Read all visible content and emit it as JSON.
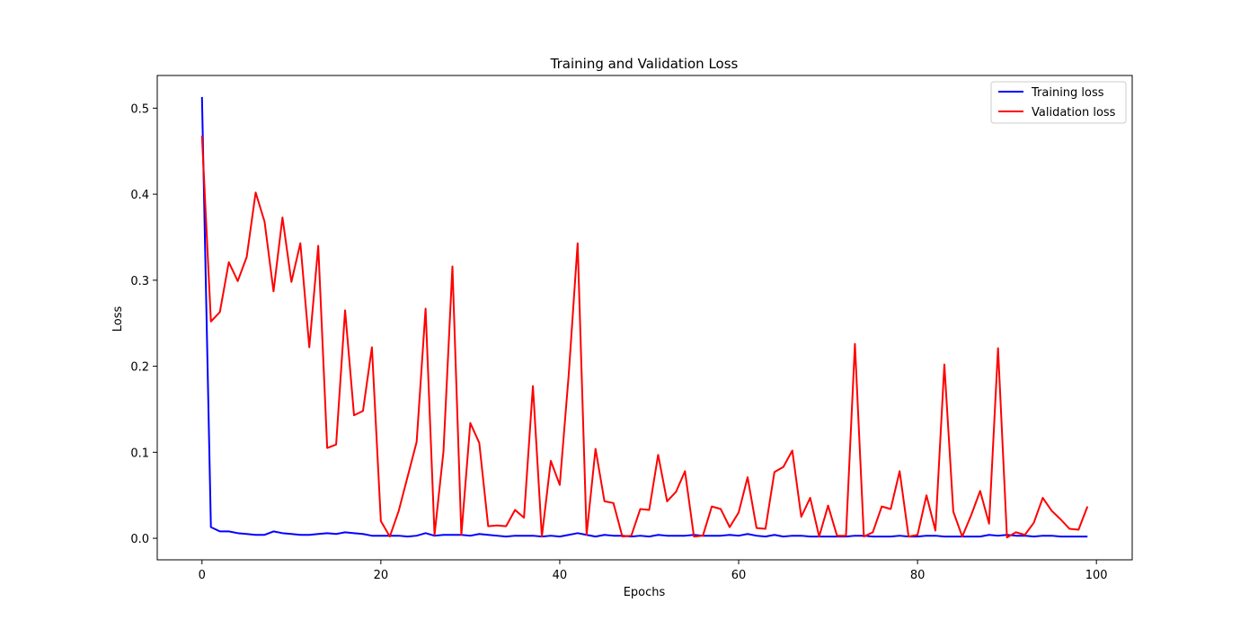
{
  "chart_data": {
    "type": "line",
    "title": "Training and Validation Loss",
    "xlabel": "Epochs",
    "ylabel": "Loss",
    "xlim": [
      -5,
      104
    ],
    "ylim": [
      -0.025,
      0.538
    ],
    "xticks": [
      0,
      20,
      40,
      60,
      80,
      100
    ],
    "yticks": [
      0.0,
      0.1,
      0.2,
      0.3,
      0.4,
      0.5
    ],
    "xtick_labels": [
      "0",
      "20",
      "40",
      "60",
      "80",
      "100"
    ],
    "ytick_labels": [
      "0.0",
      "0.1",
      "0.2",
      "0.3",
      "0.4",
      "0.5"
    ],
    "grid": false,
    "legend_position": "top-right",
    "series": [
      {
        "name": "Training loss",
        "color": "#0000ff",
        "values": [
          0.513,
          0.013,
          0.008,
          0.008,
          0.006,
          0.005,
          0.004,
          0.004,
          0.008,
          0.006,
          0.005,
          0.004,
          0.004,
          0.005,
          0.006,
          0.005,
          0.007,
          0.006,
          0.005,
          0.003,
          0.003,
          0.003,
          0.003,
          0.002,
          0.003,
          0.006,
          0.003,
          0.004,
          0.004,
          0.004,
          0.003,
          0.005,
          0.004,
          0.003,
          0.002,
          0.003,
          0.003,
          0.003,
          0.002,
          0.003,
          0.002,
          0.004,
          0.006,
          0.004,
          0.002,
          0.004,
          0.003,
          0.003,
          0.002,
          0.003,
          0.002,
          0.004,
          0.003,
          0.003,
          0.003,
          0.004,
          0.003,
          0.003,
          0.003,
          0.004,
          0.003,
          0.005,
          0.003,
          0.002,
          0.004,
          0.002,
          0.003,
          0.003,
          0.002,
          0.002,
          0.002,
          0.002,
          0.002,
          0.003,
          0.003,
          0.002,
          0.002,
          0.002,
          0.003,
          0.002,
          0.002,
          0.003,
          0.003,
          0.002,
          0.002,
          0.002,
          0.002,
          0.002,
          0.004,
          0.003,
          0.004,
          0.003,
          0.003,
          0.002,
          0.003,
          0.003,
          0.002,
          0.002,
          0.002,
          0.002
        ]
      },
      {
        "name": "Validation loss",
        "color": "#ff0000",
        "values": [
          0.468,
          0.252,
          0.263,
          0.321,
          0.299,
          0.327,
          0.402,
          0.368,
          0.287,
          0.373,
          0.298,
          0.343,
          0.222,
          0.34,
          0.105,
          0.109,
          0.265,
          0.143,
          0.148,
          0.222,
          0.02,
          0.002,
          0.032,
          0.072,
          0.112,
          0.267,
          0.004,
          0.101,
          0.316,
          0.004,
          0.134,
          0.111,
          0.014,
          0.015,
          0.014,
          0.033,
          0.024,
          0.177,
          0.002,
          0.09,
          0.062,
          0.19,
          0.343,
          0.004,
          0.104,
          0.043,
          0.041,
          0.002,
          0.003,
          0.034,
          0.033,
          0.097,
          0.043,
          0.054,
          0.078,
          0.002,
          0.003,
          0.037,
          0.034,
          0.013,
          0.03,
          0.071,
          0.012,
          0.011,
          0.077,
          0.083,
          0.102,
          0.025,
          0.047,
          0.002,
          0.038,
          0.003,
          0.003,
          0.226,
          0.002,
          0.007,
          0.037,
          0.034,
          0.078,
          0.002,
          0.004,
          0.05,
          0.009,
          0.202,
          0.031,
          0.002,
          0.027,
          0.055,
          0.017,
          0.221,
          0.001,
          0.007,
          0.004,
          0.018,
          0.047,
          0.032,
          0.022,
          0.011,
          0.01,
          0.037
        ]
      }
    ]
  }
}
